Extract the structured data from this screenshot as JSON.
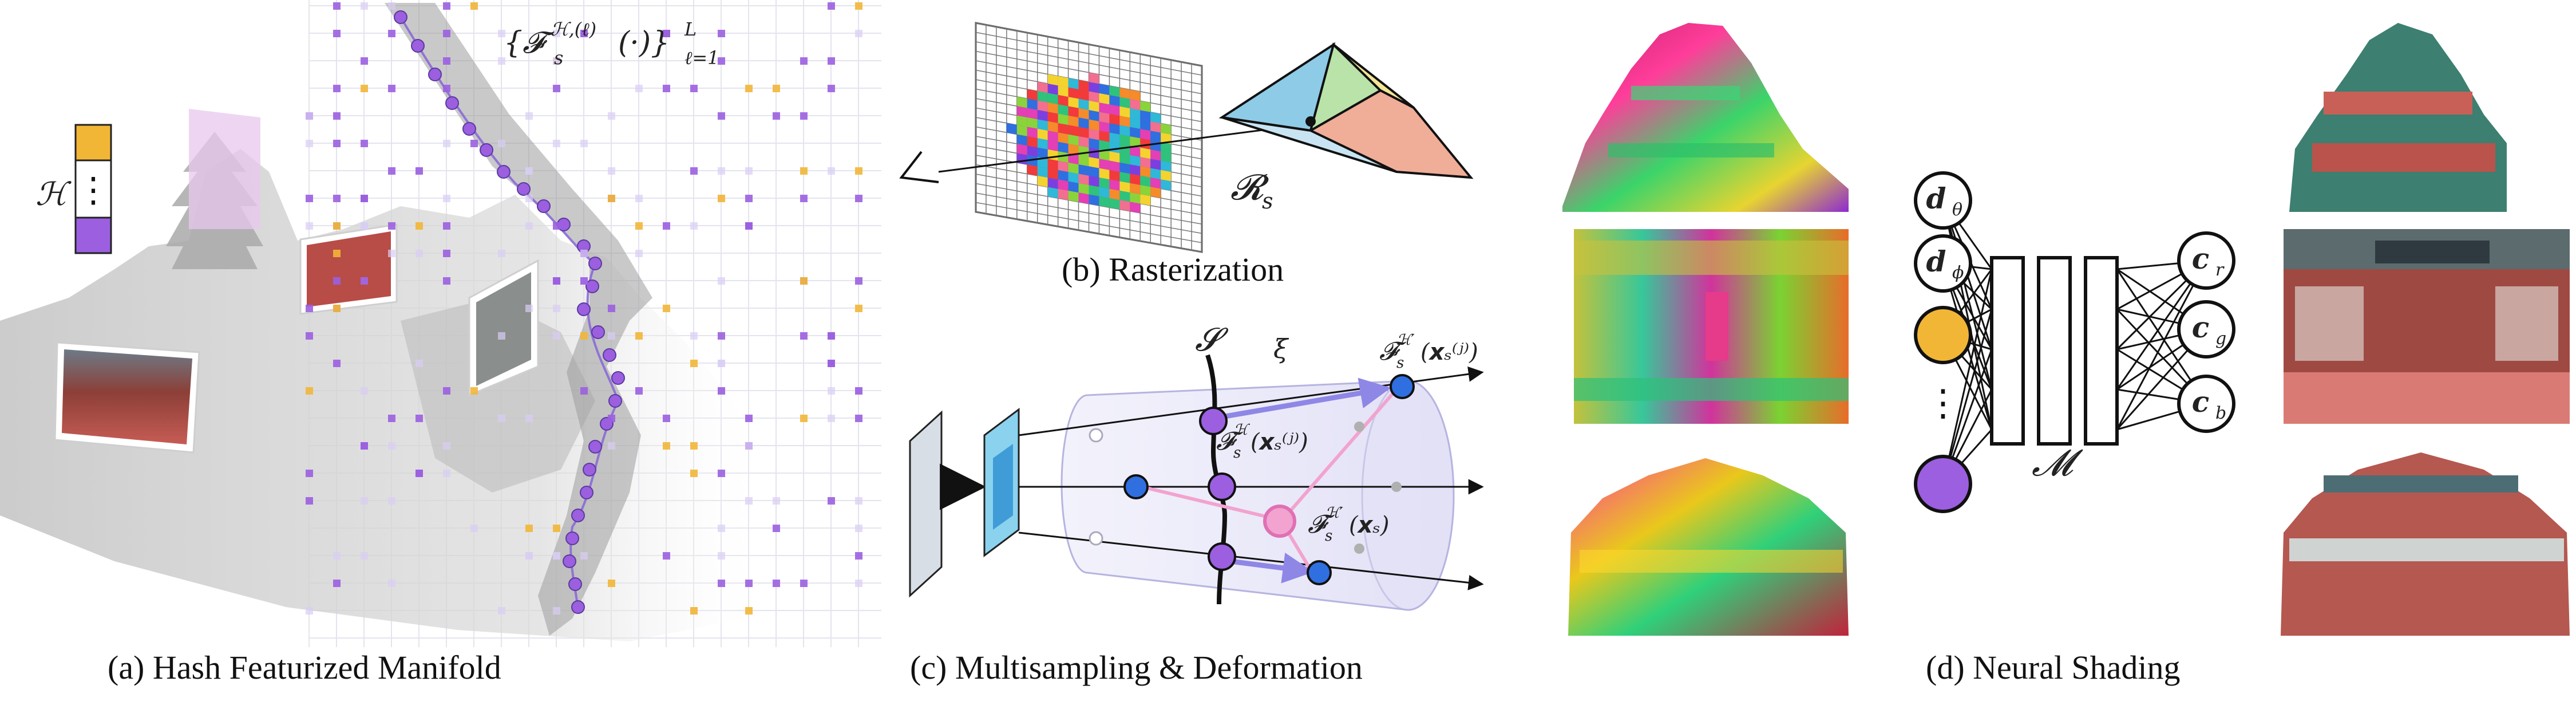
{
  "captions": {
    "a": "(a) Hash Featurized Manifold",
    "b": "(b) Rasterization",
    "c": "(c) Multisampling & Deformation",
    "d": "(d) Neural Shading"
  },
  "panel_a": {
    "hash_symbol": "ℋ",
    "ellipsis": "⋮",
    "feature_set_formula": "{𝓕ₛ^{ℋ,(ℓ)}(·)}ᴸ, ℓ=1",
    "formula_main": "{𝓕",
    "formula_sub": "s",
    "formula_sup": "ℋ,(ℓ)",
    "formula_arg": "(·)}",
    "formula_upper": "L",
    "formula_lower": "ℓ=1",
    "colors": {
      "orange": "#f2b636",
      "purple": "#9b5fe0",
      "pink_plane": "#e8c8ee",
      "grid": "#e4e4ee"
    }
  },
  "panel_b": {
    "rasterizer_symbol": "𝓡",
    "rasterizer_sub": "s",
    "triangle_colors": [
      "#8ecbe6",
      "#b9e3a8",
      "#f3e596",
      "#f0ad98"
    ]
  },
  "panel_c": {
    "manifold_symbol": "𝓢",
    "offset_symbol": "ξ",
    "label_top_main": "𝓕",
    "label_top_sub": "s",
    "label_top_sup": "ℋ′",
    "label_top_arg": "(𝙭ₛ⁽ʲ⁾)",
    "label_mid_main": "𝓕",
    "label_mid_sub": "s",
    "label_mid_sup": "ℋ",
    "label_mid_arg": "(𝙭ₛ⁽ʲ⁾)",
    "label_low_main": "𝓕",
    "label_low_sub": "s",
    "label_low_sup": "ℋ′",
    "label_low_arg": "(𝙭ₛ)",
    "colors": {
      "blue": "#2f6fe0",
      "purple": "#9b5fe0",
      "pink": "#f2a3cf",
      "cylinder": "#e3e2f6"
    }
  },
  "panel_d": {
    "inputs": [
      {
        "label": "𝒅",
        "sub": "θ"
      },
      {
        "label": "𝒅",
        "sub": "ϕ"
      },
      {
        "label": "",
        "sub": ""
      },
      {
        "label": "⋮",
        "sub": ""
      },
      {
        "label": "",
        "sub": ""
      }
    ],
    "outputs": [
      {
        "label": "𝒄",
        "sub": "r"
      },
      {
        "label": "𝒄",
        "sub": "g"
      },
      {
        "label": "𝒄",
        "sub": "b"
      }
    ],
    "mlp_symbol": "𝓜",
    "colors": {
      "orange": "#f2b636",
      "purple": "#9b5fe0"
    }
  }
}
